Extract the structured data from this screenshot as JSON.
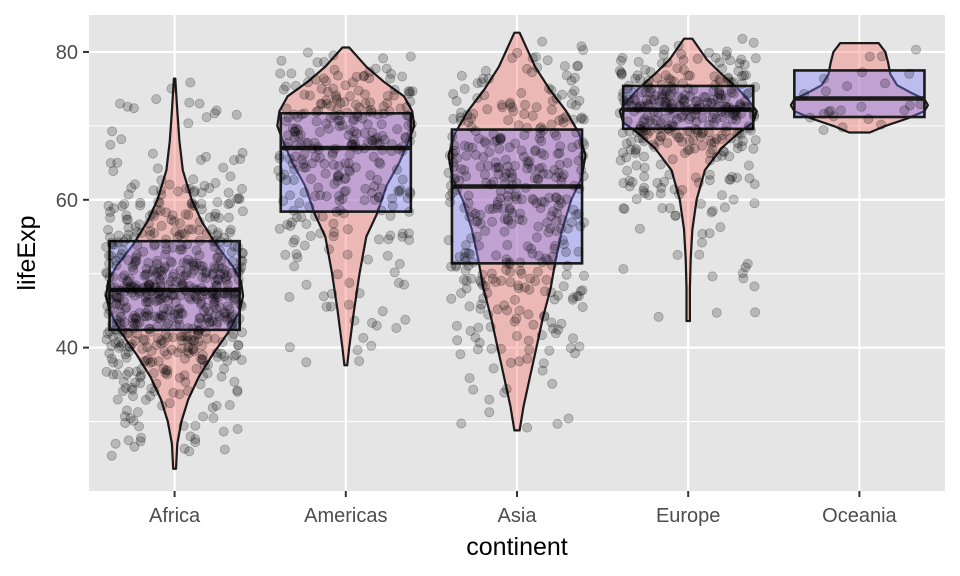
{
  "chart_data": {
    "type": "violin",
    "xlabel": "continent",
    "ylabel": "lifeExp",
    "categories": [
      "Africa",
      "Americas",
      "Asia",
      "Europe",
      "Oceania"
    ],
    "ylim": [
      20.6,
      85.0
    ],
    "yticks": [
      40,
      60,
      80
    ],
    "grid": true,
    "legend": "none",
    "colors": {
      "panel": "#e5e5e5",
      "grid": "#ffffff",
      "violin_fill": "#f8766d",
      "box_fill": "#7f7fff",
      "outline": "#1a1a1a",
      "points": "#000000",
      "tick_text": "#4d4d4d"
    },
    "boxes": [
      {
        "category": "Africa",
        "q1": 42.4,
        "median": 47.8,
        "q3": 54.4
      },
      {
        "category": "Americas",
        "q1": 58.4,
        "median": 67.0,
        "q3": 71.7
      },
      {
        "category": "Asia",
        "q1": 51.4,
        "median": 61.8,
        "q3": 69.5
      },
      {
        "category": "Europe",
        "q1": 69.6,
        "median": 72.2,
        "q3": 75.4
      },
      {
        "category": "Oceania",
        "q1": 71.2,
        "median": 73.7,
        "q3": 77.5
      }
    ],
    "violins": [
      {
        "category": "Africa",
        "y_min": 23.6,
        "y_max": 76.4,
        "profile": [
          [
            23.6,
            0.02
          ],
          [
            27,
            0.04
          ],
          [
            30,
            0.1
          ],
          [
            33,
            0.2
          ],
          [
            36,
            0.35
          ],
          [
            39,
            0.55
          ],
          [
            42,
            0.78
          ],
          [
            45,
            0.95
          ],
          [
            47,
            1.0
          ],
          [
            49,
            0.97
          ],
          [
            51,
            0.85
          ],
          [
            54,
            0.6
          ],
          [
            57,
            0.4
          ],
          [
            60,
            0.25
          ],
          [
            64,
            0.12
          ],
          [
            68,
            0.07
          ],
          [
            72,
            0.04
          ],
          [
            76.4,
            0.01
          ]
        ]
      },
      {
        "category": "Americas",
        "y_min": 37.6,
        "y_max": 80.6,
        "profile": [
          [
            37.6,
            0.02
          ],
          [
            40,
            0.05
          ],
          [
            45,
            0.12
          ],
          [
            50,
            0.2
          ],
          [
            55,
            0.3
          ],
          [
            58,
            0.45
          ],
          [
            62,
            0.6
          ],
          [
            65,
            0.78
          ],
          [
            68,
            0.92
          ],
          [
            70,
            1.0
          ],
          [
            72,
            0.97
          ],
          [
            74,
            0.85
          ],
          [
            76,
            0.55
          ],
          [
            78,
            0.3
          ],
          [
            80.6,
            0.05
          ]
        ]
      },
      {
        "category": "Asia",
        "y_min": 28.8,
        "y_max": 82.6,
        "profile": [
          [
            28.8,
            0.02
          ],
          [
            32,
            0.05
          ],
          [
            36,
            0.1
          ],
          [
            40,
            0.15
          ],
          [
            44,
            0.2
          ],
          [
            48,
            0.26
          ],
          [
            52,
            0.3
          ],
          [
            56,
            0.35
          ],
          [
            60,
            0.42
          ],
          [
            63,
            0.5
          ],
          [
            66,
            0.53
          ],
          [
            69,
            0.48
          ],
          [
            72,
            0.38
          ],
          [
            75,
            0.25
          ],
          [
            78,
            0.14
          ],
          [
            82.6,
            0.02
          ]
        ]
      },
      {
        "category": "Europe",
        "y_min": 43.6,
        "y_max": 81.8,
        "profile": [
          [
            43.6,
            0.02
          ],
          [
            48,
            0.02
          ],
          [
            52,
            0.03
          ],
          [
            56,
            0.05
          ],
          [
            60,
            0.1
          ],
          [
            64,
            0.2
          ],
          [
            67,
            0.4
          ],
          [
            69,
            0.6
          ],
          [
            70.5,
            0.78
          ],
          [
            72,
            0.82
          ],
          [
            73.5,
            0.72
          ],
          [
            75,
            0.6
          ],
          [
            77,
            0.4
          ],
          [
            79,
            0.22
          ],
          [
            81.8,
            0.05
          ]
        ]
      },
      {
        "category": "Oceania",
        "y_min": 69.1,
        "y_max": 81.2,
        "profile": [
          [
            69.1,
            0.15
          ],
          [
            70,
            0.38
          ],
          [
            71,
            0.7
          ],
          [
            72,
            0.95
          ],
          [
            72.8,
            1.0
          ],
          [
            73.6,
            0.95
          ],
          [
            74.5,
            0.75
          ],
          [
            75.5,
            0.55
          ],
          [
            77,
            0.45
          ],
          [
            78.5,
            0.42
          ],
          [
            80,
            0.38
          ],
          [
            81.2,
            0.28
          ]
        ]
      }
    ],
    "jitter_points": [
      {
        "category": "Africa",
        "count": 624,
        "y_min": 23.6,
        "y_max": 76.4
      },
      {
        "category": "Americas",
        "count": 300,
        "y_min": 37.6,
        "y_max": 80.6
      },
      {
        "category": "Asia",
        "count": 396,
        "y_min": 28.8,
        "y_max": 82.6
      },
      {
        "category": "Europe",
        "count": 360,
        "y_min": 43.6,
        "y_max": 81.8
      },
      {
        "category": "Oceania",
        "count": 24,
        "y_min": 69.1,
        "y_max": 81.2
      }
    ]
  }
}
